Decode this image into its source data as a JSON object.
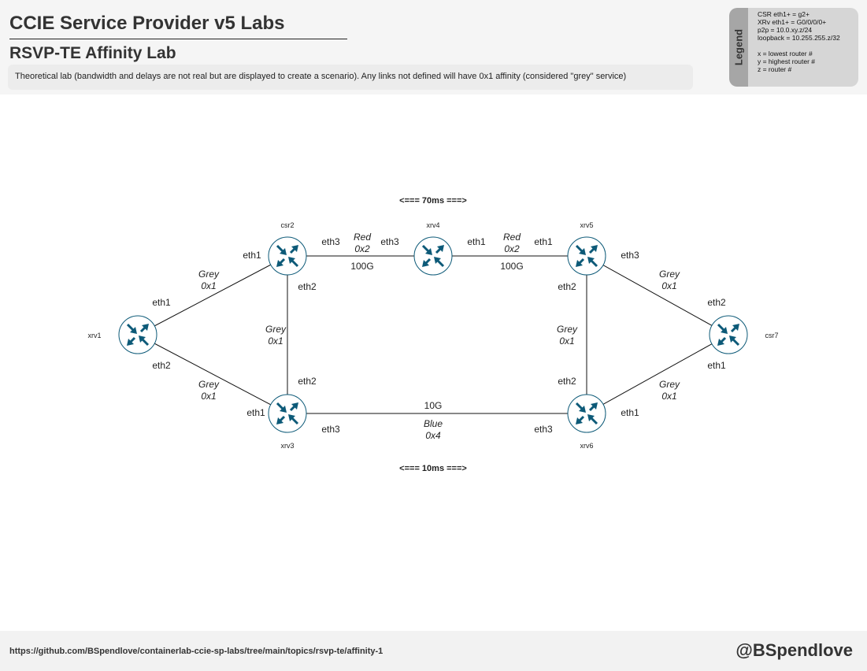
{
  "header": {
    "title": "CCIE Service Provider v5 Labs",
    "subtitle": "RSVP-TE Affinity Lab",
    "description": "Theoretical lab (bandwidth and delays are not real but are displayed to create a scenario). Any links not defined will have 0x1 affinity (considered \"grey\" service)"
  },
  "legend": {
    "label": "Legend",
    "lines": [
      "CSR eth1+ = g2+",
      "XRv eth1+ = G0/0/0/0+",
      "p2p = 10.0.xy.z/24",
      "loopback = 10.255.255.z/32",
      "",
      "x = lowest router #",
      "y = highest router #",
      "z = router #"
    ]
  },
  "diagram": {
    "delay_top": "<=== 70ms ===>",
    "delay_bottom": "<=== 10ms ===>",
    "routers": [
      {
        "name": "xrv1"
      },
      {
        "name": "csr2"
      },
      {
        "name": "xrv3"
      },
      {
        "name": "xrv4"
      },
      {
        "name": "xrv5"
      },
      {
        "name": "xrv6"
      },
      {
        "name": "csr7"
      }
    ],
    "links": [
      {
        "a": "xrv1",
        "b": "csr2",
        "a_if": "eth1",
        "b_if": "eth1",
        "color": "Grey",
        "affinity": "0x1",
        "bandwidth": ""
      },
      {
        "a": "xrv1",
        "b": "xrv3",
        "a_if": "eth2",
        "b_if": "eth1",
        "color": "Grey",
        "affinity": "0x1",
        "bandwidth": ""
      },
      {
        "a": "csr2",
        "b": "xrv3",
        "a_if": "eth2",
        "b_if": "eth2",
        "color": "Grey",
        "affinity": "0x1",
        "bandwidth": ""
      },
      {
        "a": "csr2",
        "b": "xrv4",
        "a_if": "eth3",
        "b_if": "eth3",
        "color": "Red",
        "affinity": "0x2",
        "bandwidth": "100G"
      },
      {
        "a": "xrv4",
        "b": "xrv5",
        "a_if": "eth1",
        "b_if": "eth1",
        "color": "Red",
        "affinity": "0x2",
        "bandwidth": "100G"
      },
      {
        "a": "xrv5",
        "b": "xrv6",
        "a_if": "eth2",
        "b_if": "eth2",
        "color": "Grey",
        "affinity": "0x1",
        "bandwidth": ""
      },
      {
        "a": "xrv3",
        "b": "xrv6",
        "a_if": "eth3",
        "b_if": "eth3",
        "color": "Blue",
        "affinity": "0x4",
        "bandwidth": "10G"
      },
      {
        "a": "xrv5",
        "b": "csr7",
        "a_if": "eth3",
        "b_if": "eth2",
        "color": "Grey",
        "affinity": "0x1",
        "bandwidth": ""
      },
      {
        "a": "xrv6",
        "b": "csr7",
        "a_if": "eth1",
        "b_if": "eth1",
        "color": "Grey",
        "affinity": "0x1",
        "bandwidth": ""
      }
    ]
  },
  "footer": {
    "url": "https://github.com/BSpendlove/containerlab-ccie-sp-labs/tree/main/topics/rsvp-te/affinity-1",
    "handle": "@BSpendlove"
  },
  "colors": {
    "router_icon": "#0d5a78",
    "header_bg": "#f5f5f5",
    "legend_bg": "#d6d6d6",
    "legend_tab": "#a6a6a6"
  }
}
